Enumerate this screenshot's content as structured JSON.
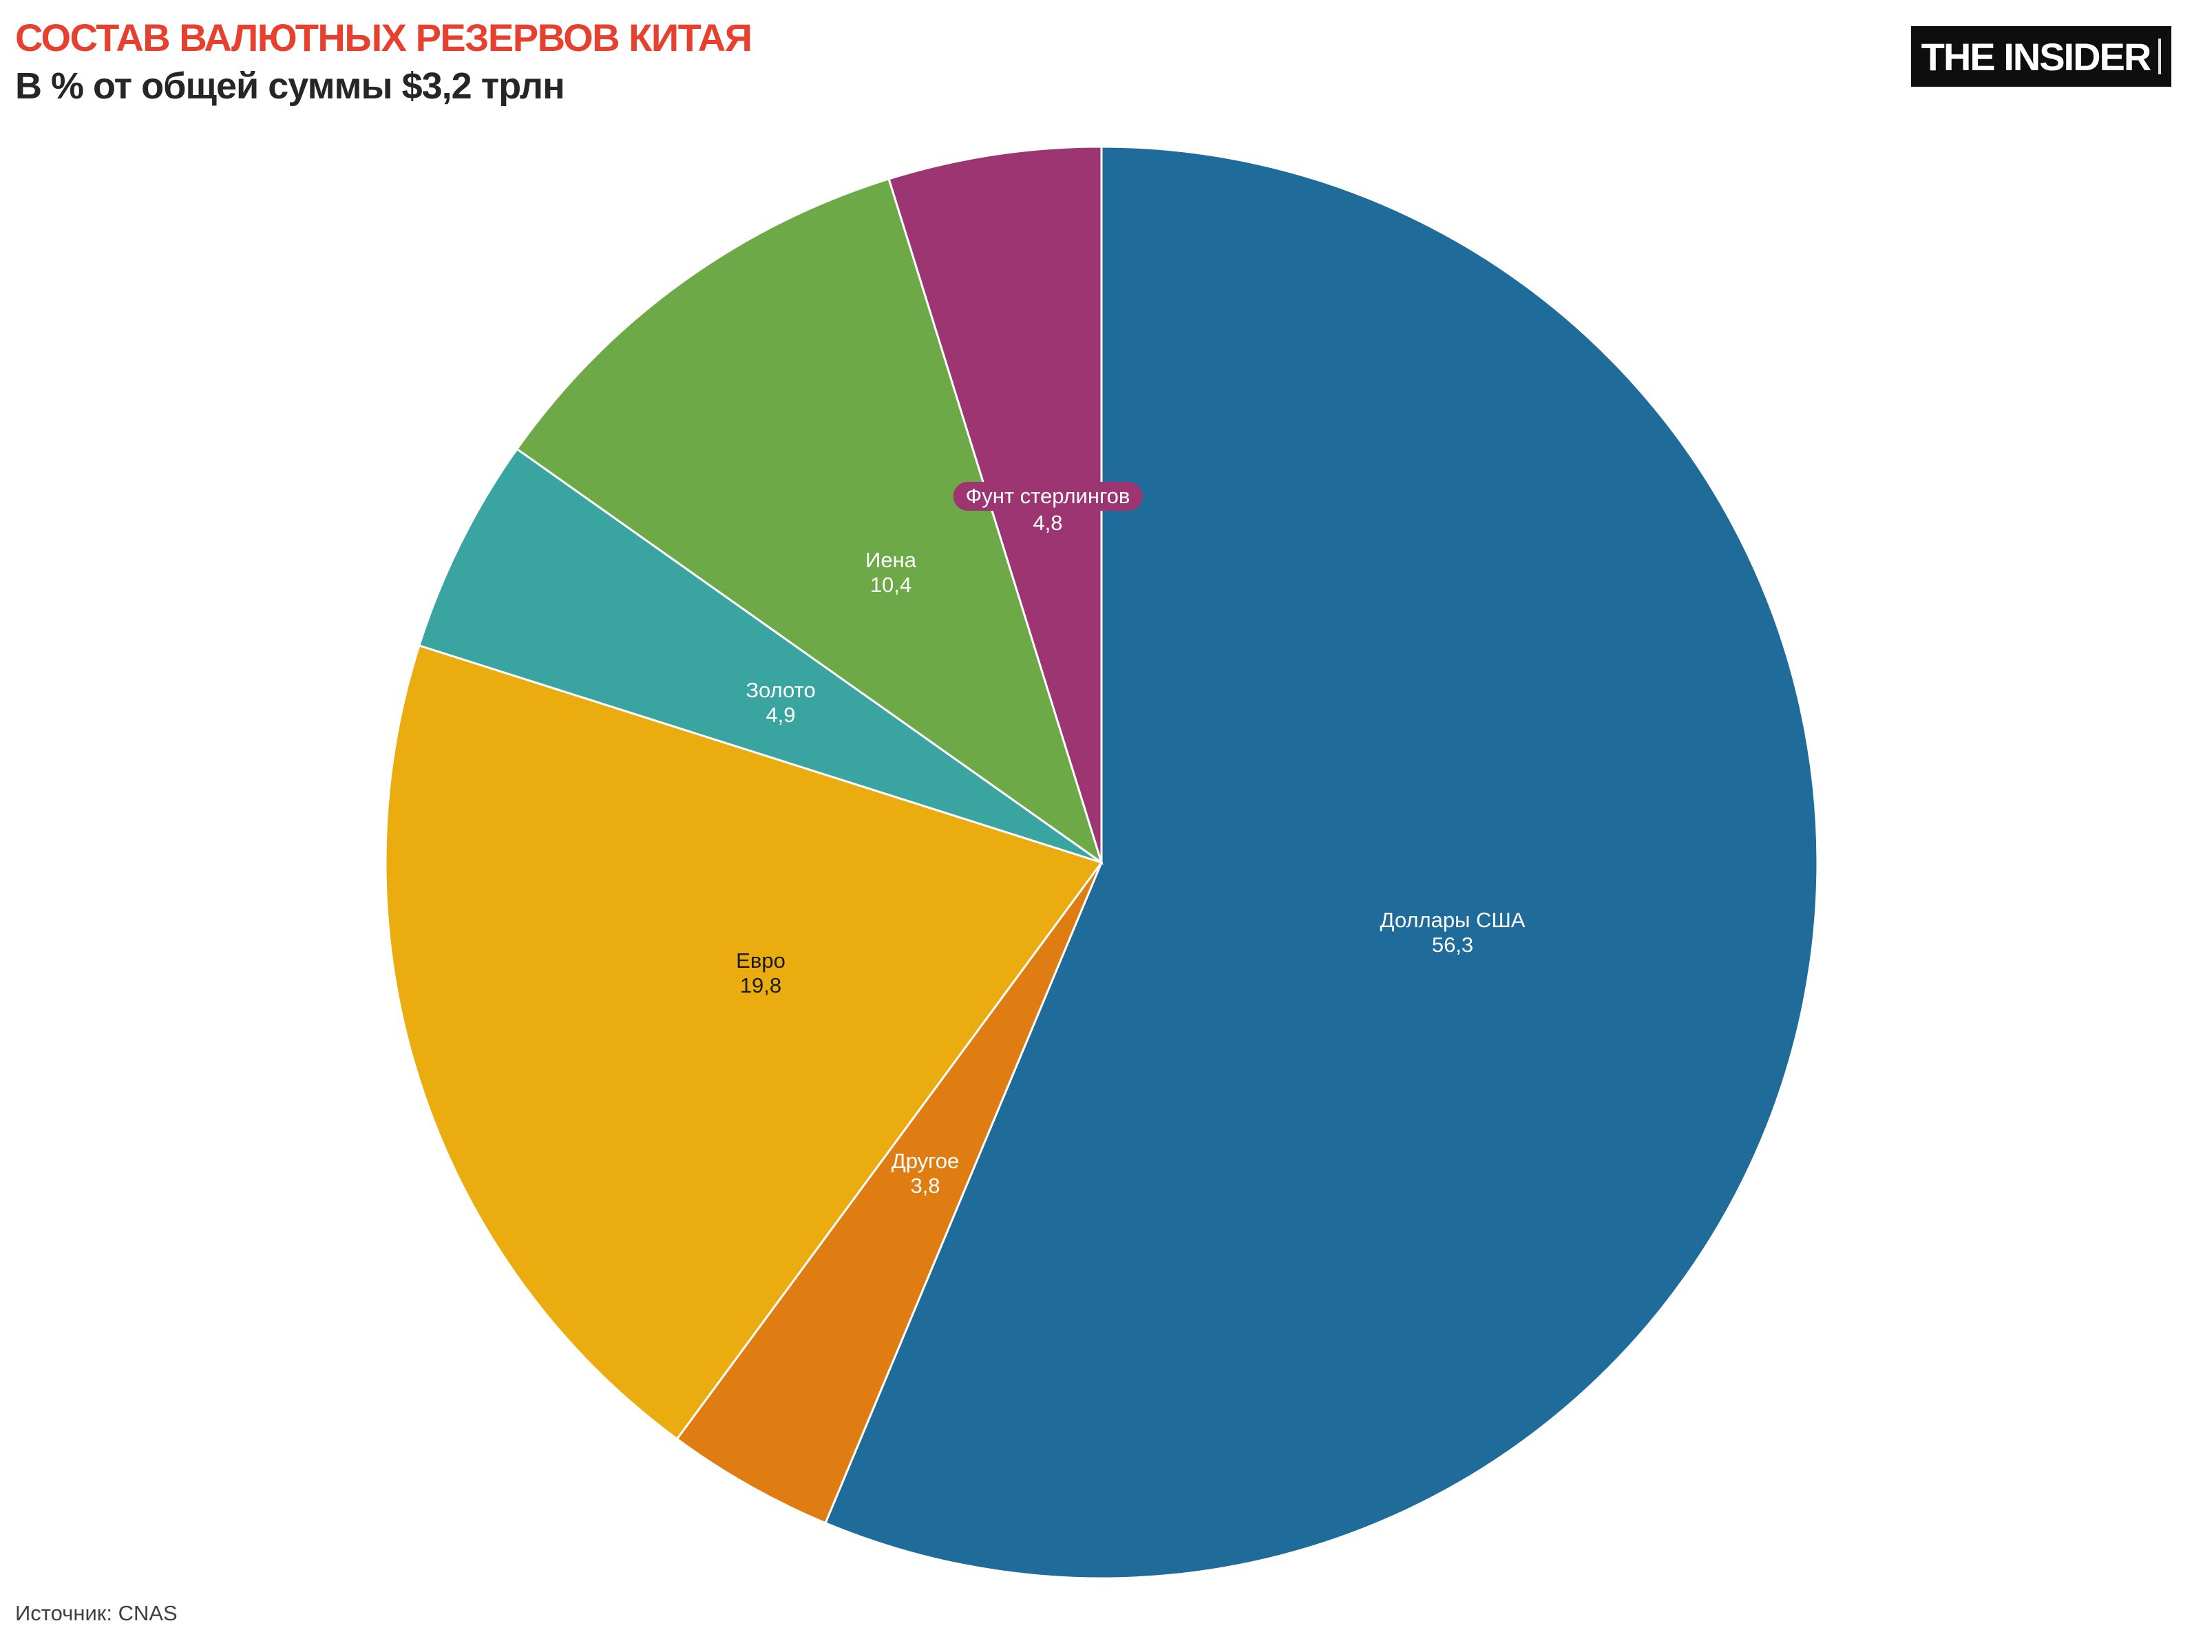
{
  "header": {
    "title": "СОСТАВ ВАЛЮТНЫХ РЕЗЕРВОВ КИТАЯ",
    "subtitle": "В % от общей суммы $3,2 трлн",
    "title_color": "#e8402f",
    "subtitle_color": "#262626"
  },
  "logo": {
    "text": "THE INSIDER",
    "bg": "#0e0e0e",
    "fg": "#ffffff"
  },
  "footer": {
    "source": "Источник: CNAS"
  },
  "chart_data": {
    "type": "pie",
    "title": "СОСТАВ ВАЛЮТНЫХ РЕЗЕРВОВ КИТАЯ",
    "subtitle": "В % от общей суммы $3,2 трлн",
    "total_label": "$3,2 трлн",
    "unit": "%",
    "direction": "clockwise",
    "start_angle_deg": 0,
    "legend": "none",
    "slices": [
      {
        "label": "Доллары США",
        "value": 56.3,
        "value_label": "56,3",
        "color": "#1f6b99",
        "text_color": "#ffffff",
        "label_pill": false
      },
      {
        "label": "Другое",
        "value": 3.8,
        "value_label": "3,8",
        "color": "#df7c12",
        "text_color": "#ffffff",
        "label_pill": false
      },
      {
        "label": "Евро",
        "value": 19.8,
        "value_label": "19,8",
        "color": "#ebac10",
        "text_color": "#1a1a1a",
        "label_pill": false
      },
      {
        "label": "Золото",
        "value": 4.9,
        "value_label": "4,9",
        "color": "#3aa5a0",
        "text_color": "#ffffff",
        "label_pill": false
      },
      {
        "label": "Иена",
        "value": 10.4,
        "value_label": "10,4",
        "color": "#6da947",
        "text_color": "#ffffff",
        "label_pill": false
      },
      {
        "label": "Фунт стерлингов",
        "value": 4.8,
        "value_label": "4,8",
        "color": "#9c3572",
        "text_color": "#ffffff",
        "label_pill": true
      }
    ]
  }
}
